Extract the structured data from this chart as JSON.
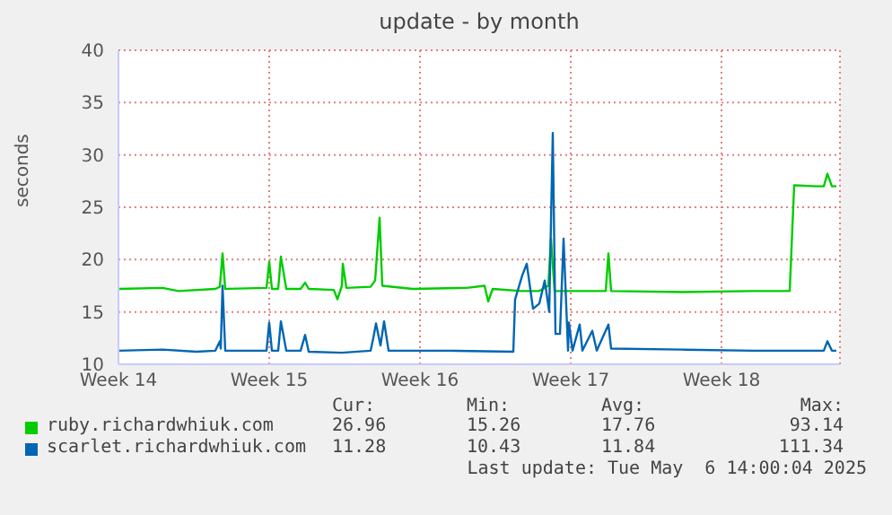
{
  "chart_data": {
    "type": "line",
    "title": "update - by month",
    "ylabel": "seconds",
    "xlim": [
      "2025-04-03T02:00",
      "2025-05-06T14:00"
    ],
    "xticks": [
      {
        "value": "2025-04-03T02:00",
        "label": "Week 14"
      },
      {
        "value": "2025-04-10T02:00",
        "label": "Week 15"
      },
      {
        "value": "2025-04-17T02:00",
        "label": "Week 16"
      },
      {
        "value": "2025-04-24T02:00",
        "label": "Week 17"
      },
      {
        "value": "2025-05-01T02:00",
        "label": "Week 18"
      }
    ],
    "ylim": [
      10,
      40
    ],
    "yticks": [
      10,
      15,
      20,
      25,
      30,
      35,
      40
    ],
    "grid": true,
    "legend": "bottom",
    "series": [
      {
        "name": "ruby.richardwhiuk.com",
        "color": "#00cc00",
        "x": [
          "2025-04-03T02:00",
          "2025-04-05T03:00",
          "2025-04-05T21:00",
          "2025-04-07T14:00",
          "2025-04-07T19:00",
          "2025-04-07T22:00",
          "2025-04-08T01:00",
          "2025-04-09T23:00",
          "2025-04-10T02:00",
          "2025-04-10T05:00",
          "2025-04-10T12:00",
          "2025-04-10T15:00",
          "2025-04-10T21:00",
          "2025-04-11T13:00",
          "2025-04-11T18:00",
          "2025-04-11T22:00",
          "2025-04-13T02:00",
          "2025-04-13T06:00",
          "2025-04-13T11:00",
          "2025-04-13T12:00",
          "2025-04-13T16:00",
          "2025-04-14T19:00",
          "2025-04-15T00:00",
          "2025-04-15T05:00",
          "2025-04-15T08:00",
          "2025-04-16T18:00",
          "2025-04-19T06:00",
          "2025-04-20T02:00",
          "2025-04-20T06:00",
          "2025-04-20T11:00",
          "2025-04-21T19:00",
          "2025-04-22T15:00",
          "2025-04-23T01:00",
          "2025-04-23T04:00",
          "2025-04-23T08:00",
          "2025-04-25T02:00",
          "2025-04-25T17:00",
          "2025-04-25T20:00",
          "2025-04-25T23:00",
          "2025-04-29T06:00",
          "2025-05-02T13:00",
          "2025-05-04T06:00",
          "2025-05-04T11:00",
          "2025-05-05T12:00",
          "2025-05-05T20:00",
          "2025-05-06T00:00",
          "2025-05-06T05:00",
          "2025-05-06T10:00"
        ],
        "values": [
          17.2,
          17.3,
          17.0,
          17.2,
          17.4,
          20.6,
          17.2,
          17.3,
          19.8,
          17.2,
          17.2,
          20.3,
          17.2,
          17.2,
          17.8,
          17.2,
          17.1,
          16.2,
          17.5,
          19.6,
          17.3,
          17.4,
          18.0,
          24.0,
          17.5,
          17.2,
          17.3,
          17.5,
          16.0,
          17.2,
          17.0,
          17.0,
          17.5,
          22.0,
          17.0,
          17.0,
          17.0,
          20.6,
          17.0,
          16.9,
          17.0,
          17.0,
          27.1,
          27.0,
          27.0,
          28.2,
          27.0,
          27.0
        ]
      },
      {
        "name": "scarlet.richardwhiuk.com",
        "color": "#0066b3",
        "x": [
          "2025-04-03T02:00",
          "2025-04-05T03:00",
          "2025-04-06T17:00",
          "2025-04-07T14:00",
          "2025-04-07T19:00",
          "2025-04-07T20:00",
          "2025-04-07T22:00",
          "2025-04-08T01:00",
          "2025-04-09T23:00",
          "2025-04-10T02:00",
          "2025-04-10T05:00",
          "2025-04-10T12:00",
          "2025-04-10T15:00",
          "2025-04-10T21:00",
          "2025-04-11T13:00",
          "2025-04-11T18:00",
          "2025-04-11T22:00",
          "2025-04-13T11:00",
          "2025-04-14T19:00",
          "2025-04-14T22:00",
          "2025-04-15T01:00",
          "2025-04-15T06:00",
          "2025-04-15T10:00",
          "2025-04-15T15:00",
          "2025-04-18T10:00",
          "2025-04-21T10:00",
          "2025-04-21T12:00",
          "2025-04-21T20:00",
          "2025-04-22T01:00",
          "2025-04-22T08:00",
          "2025-04-22T15:00",
          "2025-04-22T21:00",
          "2025-04-23T02:00",
          "2025-04-23T06:00",
          "2025-04-23T09:00",
          "2025-04-23T14:00",
          "2025-04-23T18:00",
          "2025-04-23T23:00",
          "2025-04-24T00:00",
          "2025-04-24T04:00",
          "2025-04-24T12:00",
          "2025-04-24T15:00",
          "2025-04-25T02:00",
          "2025-04-25T07:00",
          "2025-04-25T20:00",
          "2025-04-25T23:00",
          "2025-04-29T06:00",
          "2025-05-02T13:00",
          "2025-05-05T20:00",
          "2025-05-06T00:00",
          "2025-05-06T05:00",
          "2025-05-06T10:00"
        ],
        "values": [
          11.3,
          11.4,
          11.2,
          11.3,
          12.2,
          11.5,
          17.5,
          11.3,
          11.3,
          14.0,
          11.3,
          11.3,
          14.1,
          11.3,
          11.3,
          12.8,
          11.2,
          11.1,
          11.3,
          12.5,
          13.9,
          11.8,
          14.1,
          11.3,
          11.3,
          11.2,
          16.2,
          18.5,
          19.6,
          15.3,
          15.8,
          18.0,
          15.0,
          32.1,
          12.9,
          12.9,
          22.0,
          11.3,
          14.0,
          11.3,
          13.8,
          11.3,
          13.2,
          11.3,
          13.8,
          11.5,
          11.4,
          11.3,
          11.3,
          12.2,
          11.3,
          11.3
        ]
      }
    ],
    "annotations": [
      "Cur:",
      "Min:",
      "Avg:",
      "Max:",
      "26.96",
      "15.26",
      "17.76",
      "93.14",
      "11.28",
      "10.43",
      "11.84",
      "111.34",
      "Last update: Tue May  6 14:00:04 2025"
    ]
  }
}
